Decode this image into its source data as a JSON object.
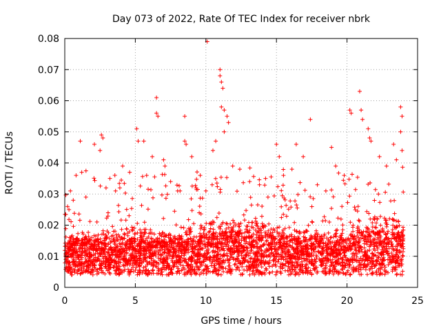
{
  "chart_data": {
    "type": "scatter",
    "title": "Day 073 of 2022, Rate Of TEC Index for receiver nbrk",
    "xlabel": "GPS time / hours",
    "ylabel": "ROTI / TECUs",
    "xlim": [
      0,
      25
    ],
    "ylim": [
      0,
      0.08
    ],
    "x_ticks": [
      "0",
      "5",
      "10",
      "15",
      "20",
      "25"
    ],
    "y_ticks": [
      "0",
      "0.01",
      "0.02",
      "0.03",
      "0.04",
      "0.05",
      "0.06",
      "0.07",
      "0.08"
    ],
    "grid": true,
    "marker": "+",
    "marker_color": "#ff0000",
    "grid_color": "#a0a0a0",
    "series": [
      {
        "points": [
          [
            0.2,
            0.026
          ],
          [
            0.3,
            0.025
          ],
          [
            0.4,
            0.031
          ],
          [
            0.6,
            0.028
          ],
          [
            0.8,
            0.036
          ],
          [
            1.1,
            0.047
          ],
          [
            1.2,
            0.037
          ],
          [
            1.5,
            0.029
          ],
          [
            2.1,
            0.046
          ],
          [
            2.5,
            0.044
          ],
          [
            2.6,
            0.049
          ],
          [
            2.7,
            0.048
          ],
          [
            3.2,
            0.035
          ],
          [
            3.6,
            0.031
          ],
          [
            3.9,
            0.032
          ],
          [
            4.1,
            0.039
          ],
          [
            4.6,
            0.037
          ],
          [
            5.1,
            0.051
          ],
          [
            5.2,
            0.047
          ],
          [
            5.6,
            0.047
          ],
          [
            5.8,
            0.036
          ],
          [
            6.2,
            0.042
          ],
          [
            6.5,
            0.061
          ],
          [
            6.5,
            0.056
          ],
          [
            6.6,
            0.055
          ],
          [
            7.0,
            0.041
          ],
          [
            7.1,
            0.039
          ],
          [
            7.5,
            0.034
          ],
          [
            8.0,
            0.031
          ],
          [
            8.5,
            0.055
          ],
          [
            8.5,
            0.047
          ],
          [
            8.6,
            0.046
          ],
          [
            9.0,
            0.042
          ],
          [
            9.3,
            0.032
          ],
          [
            9.6,
            0.036
          ],
          [
            10.0,
            0.031
          ],
          [
            10.1,
            0.079
          ],
          [
            10.5,
            0.044
          ],
          [
            10.7,
            0.047
          ],
          [
            11.0,
            0.07
          ],
          [
            11.0,
            0.068
          ],
          [
            11.1,
            0.066
          ],
          [
            11.2,
            0.064
          ],
          [
            11.1,
            0.058
          ],
          [
            11.3,
            0.057
          ],
          [
            11.5,
            0.055
          ],
          [
            11.6,
            0.053
          ],
          [
            11.3,
            0.05
          ],
          [
            11.9,
            0.039
          ],
          [
            12.4,
            0.038
          ],
          [
            13.1,
            0.034
          ],
          [
            13.8,
            0.033
          ],
          [
            14.4,
            0.029
          ],
          [
            15.0,
            0.046
          ],
          [
            15.2,
            0.042
          ],
          [
            15.5,
            0.036
          ],
          [
            16.1,
            0.038
          ],
          [
            16.4,
            0.046
          ],
          [
            16.9,
            0.042
          ],
          [
            17.4,
            0.054
          ],
          [
            17.9,
            0.033
          ],
          [
            18.5,
            0.031
          ],
          [
            18.9,
            0.045
          ],
          [
            19.2,
            0.039
          ],
          [
            19.8,
            0.036
          ],
          [
            20.2,
            0.057
          ],
          [
            20.3,
            0.056
          ],
          [
            20.9,
            0.063
          ],
          [
            21.0,
            0.057
          ],
          [
            21.1,
            0.054
          ],
          [
            21.5,
            0.051
          ],
          [
            21.6,
            0.048
          ],
          [
            21.7,
            0.047
          ],
          [
            22.3,
            0.042
          ],
          [
            22.8,
            0.039
          ],
          [
            23.3,
            0.046
          ],
          [
            23.5,
            0.041
          ],
          [
            23.8,
            0.058
          ],
          [
            23.9,
            0.055
          ],
          [
            23.8,
            0.05
          ],
          [
            23.9,
            0.044
          ]
        ]
      }
    ],
    "density_profile": [
      [
        0.0,
        0.011,
        0.008
      ],
      [
        1.0,
        0.012,
        0.01
      ],
      [
        2.0,
        0.011,
        0.01
      ],
      [
        3.0,
        0.012,
        0.01
      ],
      [
        4.0,
        0.011,
        0.011
      ],
      [
        5.0,
        0.012,
        0.011
      ],
      [
        6.0,
        0.011,
        0.011
      ],
      [
        7.0,
        0.011,
        0.01
      ],
      [
        8.0,
        0.011,
        0.01
      ],
      [
        9.0,
        0.012,
        0.011
      ],
      [
        10.0,
        0.013,
        0.012
      ],
      [
        11.0,
        0.014,
        0.012
      ],
      [
        12.0,
        0.014,
        0.012
      ],
      [
        13.0,
        0.013,
        0.012
      ],
      [
        14.0,
        0.013,
        0.012
      ],
      [
        15.0,
        0.013,
        0.011
      ],
      [
        16.0,
        0.012,
        0.011
      ],
      [
        17.0,
        0.012,
        0.01
      ],
      [
        18.0,
        0.012,
        0.01
      ],
      [
        19.0,
        0.011,
        0.01
      ],
      [
        20.0,
        0.012,
        0.011
      ],
      [
        21.0,
        0.014,
        0.012
      ],
      [
        22.0,
        0.014,
        0.013
      ],
      [
        23.0,
        0.014,
        0.013
      ],
      [
        24.0,
        0.013,
        0.012
      ]
    ]
  }
}
